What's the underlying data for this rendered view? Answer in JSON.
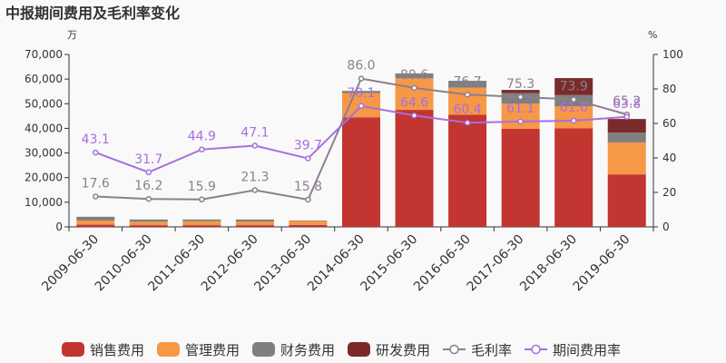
{
  "chart_data": {
    "type": "bar",
    "title": "中报期间费用及毛利率变化",
    "left_unit": "万",
    "right_unit": "%",
    "categories": [
      "2009-06-30",
      "2010-06-30",
      "2011-06-30",
      "2012-06-30",
      "2013-06-30",
      "2014-06-30",
      "2015-06-30",
      "2016-06-30",
      "2017-06-30",
      "2018-06-30",
      "2019-06-30"
    ],
    "bar_series": [
      {
        "name": "销售费用",
        "color": "#c23531",
        "values": [
          900,
          700,
          700,
          700,
          800,
          44500,
          47500,
          45500,
          39800,
          40000,
          21300
        ]
      },
      {
        "name": "管理费用",
        "color": "#f69846",
        "values": [
          1700,
          1400,
          1600,
          1500,
          1600,
          9800,
          12800,
          11000,
          10300,
          9000,
          13000
        ]
      },
      {
        "name": "财务费用",
        "color": "#7f7f7f",
        "values": [
          1500,
          900,
          700,
          800,
          200,
          900,
          2000,
          2800,
          4200,
          4500,
          4000
        ]
      },
      {
        "name": "研发费用",
        "color": "#7b2a2a",
        "values": [
          0,
          0,
          0,
          0,
          0,
          0,
          0,
          0,
          1300,
          6900,
          5500
        ]
      }
    ],
    "line_series": [
      {
        "name": "毛利率",
        "color": "#8d7f8d",
        "values": [
          17.6,
          16.2,
          15.9,
          21.3,
          15.8,
          86.0,
          80.6,
          76.7,
          75.3,
          73.9,
          65.2
        ]
      },
      {
        "name": "期间费用率",
        "color": "#a86edf",
        "values": [
          43.1,
          31.7,
          44.9,
          47.1,
          39.7,
          70.1,
          64.6,
          60.4,
          61.1,
          61.6,
          63.8
        ]
      }
    ],
    "y_left": {
      "min": 0,
      "max": 70000,
      "ticks": [
        "0",
        "10,000",
        "20,000",
        "30,000",
        "40,000",
        "50,000",
        "60,000",
        "70,000"
      ]
    },
    "y_right": {
      "min": 0,
      "max": 100,
      "ticks": [
        "0",
        "20",
        "40",
        "60",
        "80",
        "100"
      ]
    },
    "grid": false,
    "legend_position": "bottom"
  }
}
